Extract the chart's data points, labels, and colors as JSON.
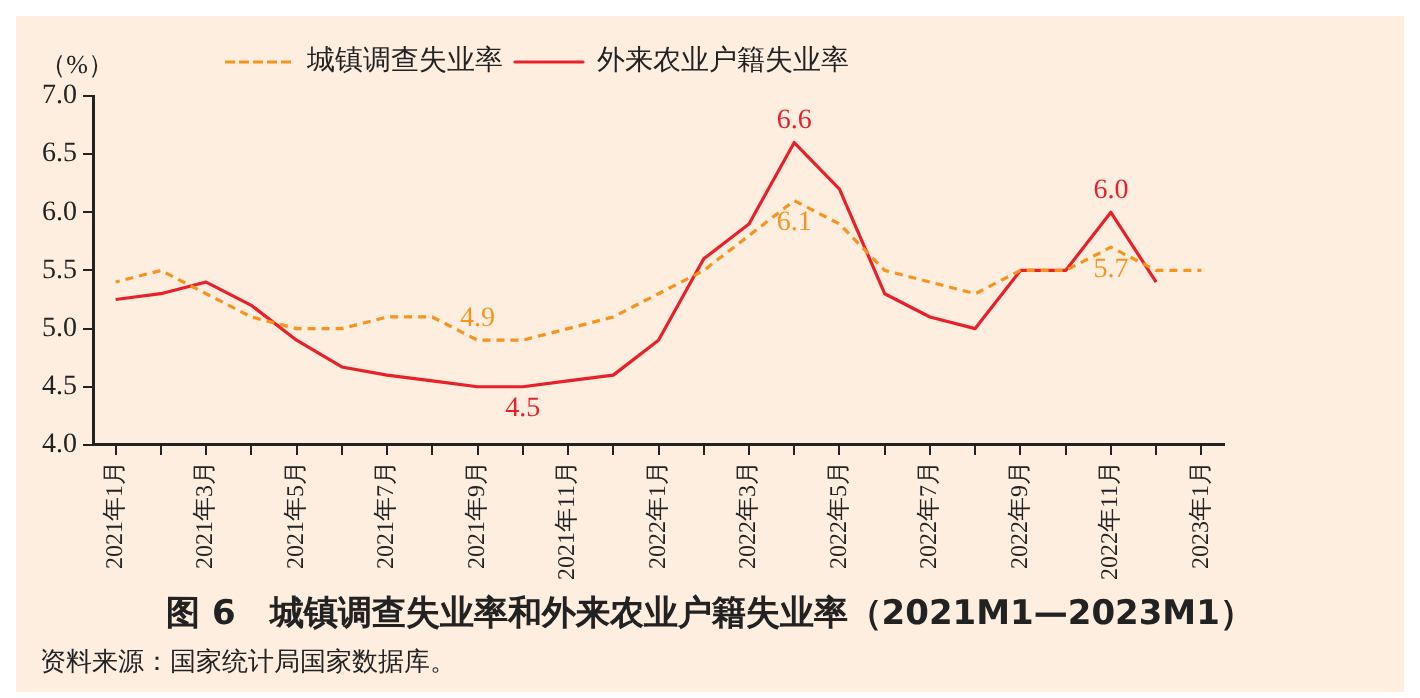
{
  "chart_data": {
    "type": "line",
    "title": "图 6　城镇调查失业率和外来农业户籍失业率（2021M1—2023M1）",
    "ylabel": "（%）",
    "annotations": [
      "资料来源：国家统计局国家数据库。"
    ],
    "categories": [
      "2021年1月",
      null,
      "2021年3月",
      null,
      "2021年5月",
      null,
      "2021年7月",
      null,
      "2021年9月",
      null,
      "2021年11月",
      null,
      "2022年1月",
      null,
      "2022年3月",
      null,
      "2022年5月",
      null,
      "2022年7月",
      null,
      "2022年9月",
      null,
      "2022年11月",
      null,
      "2023年1月"
    ],
    "series": [
      {
        "name": "城镇调查失业率",
        "color": "#f7941d",
        "line_style": "dashed",
        "values": [
          5.4,
          5.5,
          5.3,
          5.1,
          5.0,
          5.0,
          5.1,
          5.1,
          4.9,
          4.9,
          5.0,
          5.1,
          5.3,
          5.5,
          5.8,
          6.1,
          5.9,
          5.5,
          5.4,
          5.3,
          5.5,
          5.5,
          5.7,
          5.5,
          5.5
        ],
        "value_labels": [
          null,
          null,
          null,
          null,
          null,
          null,
          null,
          null,
          "4.9",
          null,
          null,
          null,
          null,
          null,
          null,
          "6.1",
          null,
          null,
          null,
          null,
          null,
          null,
          "5.7",
          null,
          null
        ]
      },
      {
        "name": "外来农业户籍失业率",
        "color": "#e8202a",
        "line_style": "solid",
        "values": [
          5.25,
          5.3,
          5.4,
          5.2,
          4.9,
          4.67,
          4.6,
          4.55,
          4.5,
          4.5,
          4.55,
          4.6,
          4.9,
          5.6,
          5.9,
          6.6,
          6.2,
          5.3,
          5.1,
          5.0,
          5.5,
          5.5,
          6.0,
          5.4,
          null
        ],
        "value_labels": [
          null,
          null,
          null,
          null,
          null,
          null,
          null,
          null,
          null,
          "4.5",
          null,
          null,
          null,
          null,
          null,
          "6.6",
          null,
          null,
          null,
          null,
          null,
          null,
          "6.0",
          null,
          null
        ]
      }
    ],
    "ylim": [
      4.0,
      7.0
    ],
    "yticks": [
      {
        "value": 4,
        "label": "4.0"
      },
      4.5,
      {
        "value": 5,
        "label": "5.0"
      },
      5.5,
      {
        "value": 6,
        "label": "6.0"
      },
      6.5,
      {
        "value": 7,
        "label": "7.0"
      }
    ],
    "legend": "top left",
    "marker": "none"
  }
}
